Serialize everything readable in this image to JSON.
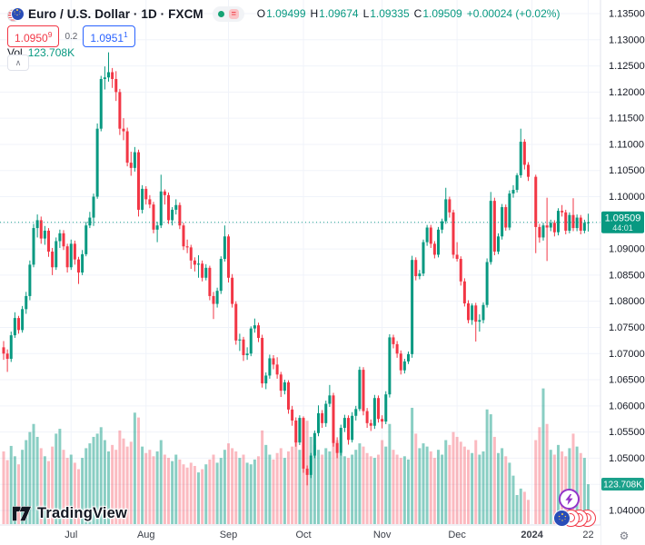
{
  "header": {
    "title_full": "Euro / U.S. Dollar · 1D · FXCM",
    "status_equals_glyph": "=",
    "ohlc": {
      "o_label": "O",
      "o": "1.09499",
      "h_label": "H",
      "h": "1.09674",
      "l_label": "L",
      "l": "1.09335",
      "c_label": "C",
      "c": "1.09509",
      "change": "+0.00024 (+0.02%)"
    },
    "bid": {
      "value": "1.0950",
      "sup": "9"
    },
    "spread": "0.2",
    "ask": {
      "value": "1.0951",
      "sup": "1"
    },
    "vol_label": "Vol",
    "vol_value": "123.708K",
    "collapse_glyph": "∧"
  },
  "price_label": {
    "price": "1.09509",
    "countdown": "44:01"
  },
  "volume_axis_label": "123.708K",
  "footer": {
    "logo_text": "TradingView"
  },
  "gear_glyph": "⚙",
  "colors": {
    "up": "#089981",
    "down": "#f23645",
    "vol_up": "rgba(8,153,129,0.48)",
    "vol_down": "rgba(242,54,69,0.34)",
    "grid": "#f0f3fa",
    "axis_border": "#e0e3eb",
    "axis_text": "#131722",
    "time_text": "#3a3e47",
    "label_bg": "#089981"
  },
  "chart_data": {
    "type": "candlestick",
    "title": "Euro / U.S. Dollar",
    "symbol": "EUR/USD",
    "timeframe": "1D",
    "exchange": "FXCM",
    "legend_position": "top-left",
    "grid": true,
    "y_axis": {
      "min": 1.0375,
      "max": 1.1376,
      "tick_step": 0.005,
      "ticks": [
        1.135,
        1.13,
        1.125,
        1.12,
        1.115,
        1.11,
        1.105,
        1.1,
        1.095,
        1.09,
        1.085,
        1.08,
        1.075,
        1.07,
        1.065,
        1.06,
        1.055,
        1.05,
        1.045,
        1.04
      ],
      "hidden_tick_labels": [
        1.095,
        1.045
      ]
    },
    "x_gridlines": [
      {
        "i": 18,
        "label": "Jul"
      },
      {
        "i": 38,
        "label": "Aug"
      },
      {
        "i": 60,
        "label": "Sep"
      },
      {
        "i": 80,
        "label": "Oct"
      },
      {
        "i": 101,
        "label": "Nov"
      },
      {
        "i": 121,
        "label": "Dec"
      },
      {
        "i": 141,
        "label": "2024"
      },
      {
        "i": 156,
        "label": "22"
      }
    ],
    "last_price": 1.09509,
    "countdown": "44:01",
    "last_volume_k": 123.708,
    "candles": [
      [
        1.0712,
        1.0724,
        1.0688,
        1.07
      ],
      [
        1.07,
        1.0708,
        1.0665,
        1.069
      ],
      [
        1.069,
        1.0742,
        1.0684,
        1.0735
      ],
      [
        1.0735,
        1.0779,
        1.073,
        1.0768
      ],
      [
        1.0768,
        1.0772,
        1.0738,
        1.0745
      ],
      [
        1.0745,
        1.0791,
        1.074,
        1.0785
      ],
      [
        1.0785,
        1.0818,
        1.0776,
        1.081
      ],
      [
        1.081,
        1.0878,
        1.0802,
        1.087
      ],
      [
        1.087,
        1.0948,
        1.0865,
        1.094
      ],
      [
        1.094,
        1.0966,
        1.0922,
        1.0955
      ],
      [
        1.0955,
        1.0962,
        1.091,
        1.092
      ],
      [
        1.092,
        1.0944,
        1.0908,
        1.0935
      ],
      [
        1.0935,
        1.094,
        1.0885,
        1.0895
      ],
      [
        1.0895,
        1.0902,
        1.085,
        1.0865
      ],
      [
        1.0865,
        1.0922,
        1.086,
        1.0915
      ],
      [
        1.0915,
        1.0937,
        1.0902,
        1.093
      ],
      [
        1.093,
        1.0936,
        1.0898,
        1.0905
      ],
      [
        1.0905,
        1.091,
        1.0855,
        1.0865
      ],
      [
        1.0865,
        1.0918,
        1.086,
        1.091
      ],
      [
        1.091,
        1.0916,
        1.087,
        1.088
      ],
      [
        1.088,
        1.0885,
        1.0833,
        1.0855
      ],
      [
        1.0855,
        1.0898,
        1.085,
        1.089
      ],
      [
        1.089,
        1.0952,
        1.0886,
        1.0945
      ],
      [
        1.0945,
        1.0971,
        1.094,
        1.096
      ],
      [
        1.096,
        1.1006,
        1.0944,
        1.1
      ],
      [
        1.1,
        1.114,
        1.0996,
        1.113
      ],
      [
        1.113,
        1.1231,
        1.1125,
        1.1225
      ],
      [
        1.1225,
        1.1249,
        1.1205,
        1.1228
      ],
      [
        1.1228,
        1.1276,
        1.122,
        1.1238
      ],
      [
        1.1238,
        1.1246,
        1.1208,
        1.1225
      ],
      [
        1.1225,
        1.124,
        1.1183,
        1.12
      ],
      [
        1.12,
        1.1206,
        1.1118,
        1.113
      ],
      [
        1.113,
        1.115,
        1.1108,
        1.1125
      ],
      [
        1.1125,
        1.1132,
        1.1058,
        1.1065
      ],
      [
        1.1065,
        1.1086,
        1.104,
        1.1055
      ],
      [
        1.1055,
        1.1095,
        1.1048,
        1.1085
      ],
      [
        1.1085,
        1.109,
        1.0962,
        1.0975
      ],
      [
        1.0975,
        1.1022,
        1.0968,
        1.1015
      ],
      [
        1.1015,
        1.102,
        1.0985,
        1.0995
      ],
      [
        1.0995,
        1.1003,
        1.0978,
        1.0985
      ],
      [
        1.0985,
        1.099,
        1.093,
        1.0937
      ],
      [
        1.0937,
        1.0952,
        1.0913,
        1.0945
      ],
      [
        1.0945,
        1.1042,
        1.094,
        1.101
      ],
      [
        1.101,
        1.1014,
        1.0985,
        1.1003
      ],
      [
        1.1003,
        1.1008,
        1.0948,
        1.0955
      ],
      [
        1.0955,
        1.098,
        1.0945,
        1.0975
      ],
      [
        1.0975,
        1.0995,
        1.0966,
        1.0984
      ],
      [
        1.0984,
        1.0989,
        1.0938,
        1.0945
      ],
      [
        1.0945,
        1.095,
        1.0898,
        1.0905
      ],
      [
        1.0905,
        1.0918,
        1.0892,
        1.0903
      ],
      [
        1.0903,
        1.0908,
        1.0862,
        1.0878
      ],
      [
        1.0878,
        1.0884,
        1.0857,
        1.087
      ],
      [
        1.087,
        1.0888,
        1.0845,
        1.0872
      ],
      [
        1.0872,
        1.0878,
        1.0838,
        1.0845
      ],
      [
        1.0845,
        1.0871,
        1.084,
        1.0864
      ],
      [
        1.0864,
        1.0868,
        1.0802,
        1.081
      ],
      [
        1.081,
        1.0818,
        1.0766,
        1.0795
      ],
      [
        1.0795,
        1.0826,
        1.0788,
        1.082
      ],
      [
        1.082,
        1.0886,
        1.0814,
        1.0881
      ],
      [
        1.0881,
        1.0945,
        1.0876,
        1.0924
      ],
      [
        1.0924,
        1.0928,
        1.0836,
        1.0845
      ],
      [
        1.0845,
        1.0852,
        1.0788,
        1.0795
      ],
      [
        1.0795,
        1.08,
        1.0717,
        1.0725
      ],
      [
        1.0725,
        1.0738,
        1.0705,
        1.0727
      ],
      [
        1.0727,
        1.0732,
        1.0686,
        1.0697
      ],
      [
        1.0697,
        1.0712,
        1.0688,
        1.07
      ],
      [
        1.07,
        1.0752,
        1.0695,
        1.0748
      ],
      [
        1.0748,
        1.0767,
        1.074,
        1.0754
      ],
      [
        1.0754,
        1.0759,
        1.0722,
        1.073
      ],
      [
        1.073,
        1.0736,
        1.0635,
        1.0643
      ],
      [
        1.0643,
        1.0664,
        1.0632,
        1.0658
      ],
      [
        1.0658,
        1.0698,
        1.0652,
        1.0691
      ],
      [
        1.0691,
        1.0697,
        1.067,
        1.0679
      ],
      [
        1.0679,
        1.0693,
        1.0652,
        1.066
      ],
      [
        1.066,
        1.0665,
        1.0617,
        1.0629
      ],
      [
        1.0629,
        1.065,
        1.0622,
        1.0645
      ],
      [
        1.0645,
        1.0649,
        1.0585,
        1.0593
      ],
      [
        1.0593,
        1.06,
        1.0562,
        1.0572
      ],
      [
        1.0572,
        1.0578,
        1.0522,
        1.053
      ],
      [
        1.053,
        1.0582,
        1.0525,
        1.0577
      ],
      [
        1.0577,
        1.058,
        1.0472,
        1.048
      ],
      [
        1.048,
        1.0486,
        1.0448,
        1.0468
      ],
      [
        1.0468,
        1.051,
        1.0462,
        1.0505
      ],
      [
        1.0505,
        1.0553,
        1.05,
        1.0548
      ],
      [
        1.0548,
        1.0601,
        1.0542,
        1.0586
      ],
      [
        1.0586,
        1.0592,
        1.0558,
        1.0567
      ],
      [
        1.0567,
        1.061,
        1.056,
        1.0604
      ],
      [
        1.0604,
        1.064,
        1.0598,
        1.062
      ],
      [
        1.062,
        1.0625,
        1.0522,
        1.0529
      ],
      [
        1.0529,
        1.054,
        1.05,
        1.051
      ],
      [
        1.051,
        1.0564,
        1.0505,
        1.0558
      ],
      [
        1.0558,
        1.0583,
        1.055,
        1.0577
      ],
      [
        1.0577,
        1.0582,
        1.0526,
        1.0535
      ],
      [
        1.0535,
        1.0588,
        1.053,
        1.0581
      ],
      [
        1.0581,
        1.06,
        1.0572,
        1.0594
      ],
      [
        1.0594,
        1.0675,
        1.059,
        1.0669
      ],
      [
        1.0669,
        1.0674,
        1.0582,
        1.059
      ],
      [
        1.059,
        1.0596,
        1.0558,
        1.0567
      ],
      [
        1.0567,
        1.0574,
        1.0552,
        1.0562
      ],
      [
        1.0562,
        1.0621,
        1.0556,
        1.0615
      ],
      [
        1.0615,
        1.062,
        1.0568,
        1.0575
      ],
      [
        1.0575,
        1.0582,
        1.0557,
        1.057
      ],
      [
        1.057,
        1.0628,
        1.0565,
        1.0622
      ],
      [
        1.0622,
        1.0737,
        1.0616,
        1.0731
      ],
      [
        1.0731,
        1.0736,
        1.071,
        1.0718
      ],
      [
        1.0718,
        1.0724,
        1.0692,
        1.07
      ],
      [
        1.07,
        1.0706,
        1.066,
        1.0668
      ],
      [
        1.0668,
        1.069,
        1.0662,
        1.0685
      ],
      [
        1.0685,
        1.0704,
        1.068,
        1.0699
      ],
      [
        1.0699,
        1.0887,
        1.0692,
        1.0879
      ],
      [
        1.0879,
        1.0884,
        1.084,
        1.0848
      ],
      [
        1.0848,
        1.086,
        1.0842,
        1.0853
      ],
      [
        1.0853,
        1.0918,
        1.0848,
        1.0913
      ],
      [
        1.0913,
        1.0946,
        1.0906,
        1.0941
      ],
      [
        1.0941,
        1.0946,
        1.0902,
        1.091
      ],
      [
        1.091,
        1.0915,
        1.0882,
        1.0889
      ],
      [
        1.0889,
        1.0942,
        1.0884,
        1.0937
      ],
      [
        1.0937,
        1.0958,
        1.093,
        1.0953
      ],
      [
        1.0953,
        1.1017,
        1.0948,
        1.0995
      ],
      [
        1.0995,
        1.1,
        1.096,
        1.097
      ],
      [
        1.097,
        1.0975,
        1.0882,
        1.0889
      ],
      [
        1.0889,
        1.0913,
        1.0876,
        1.0881
      ],
      [
        1.0881,
        1.0886,
        1.083,
        1.0838
      ],
      [
        1.0838,
        1.0844,
        1.079,
        1.0796
      ],
      [
        1.0796,
        1.0802,
        1.0758,
        1.0764
      ],
      [
        1.0764,
        1.0796,
        1.0755,
        1.0792
      ],
      [
        1.0792,
        1.0797,
        1.0723,
        1.0761
      ],
      [
        1.0761,
        1.0775,
        1.0742,
        1.0764
      ],
      [
        1.0764,
        1.0798,
        1.0758,
        1.0793
      ],
      [
        1.0793,
        1.0882,
        1.0788,
        1.0875
      ],
      [
        1.0875,
        1.1009,
        1.087,
        1.0992
      ],
      [
        1.0992,
        1.0998,
        1.0888,
        1.0895
      ],
      [
        1.0895,
        1.093,
        1.089,
        1.0924
      ],
      [
        1.0924,
        1.0986,
        1.0918,
        1.098
      ],
      [
        1.098,
        1.0985,
        1.0935,
        1.0941
      ],
      [
        1.0941,
        1.1012,
        1.0936,
        1.1006
      ],
      [
        1.1006,
        1.1022,
        1.0998,
        1.1013
      ],
      [
        1.1013,
        1.1045,
        1.1008,
        1.1041
      ],
      [
        1.1041,
        1.113,
        1.1036,
        1.1105
      ],
      [
        1.1105,
        1.111,
        1.1052,
        1.1061
      ],
      [
        1.1061,
        1.1066,
        1.103,
        1.1038
      ],
      null,
      [
        1.1038,
        1.1042,
        1.0892,
        1.0942
      ],
      [
        1.0942,
        1.0948,
        1.0912,
        1.0922
      ],
      [
        1.0922,
        1.095,
        1.0916,
        1.0945
      ],
      [
        1.0945,
        1.0998,
        1.0877,
        1.0941
      ],
      [
        1.0941,
        1.0956,
        1.0934,
        1.095
      ],
      [
        1.095,
        1.0955,
        1.0924,
        1.0932
      ],
      [
        1.0932,
        1.0978,
        1.0926,
        1.0973
      ],
      [
        1.0973,
        1.0984,
        1.0962,
        1.097
      ],
      [
        1.097,
        1.0975,
        1.0928,
        1.0935
      ],
      [
        1.0935,
        1.097,
        1.093,
        1.0965
      ],
      [
        1.0965,
        1.0997,
        1.0934,
        1.094
      ],
      [
        1.094,
        1.0966,
        1.0934,
        1.096
      ],
      [
        1.096,
        1.0965,
        1.0928,
        1.0935
      ],
      [
        1.0935,
        1.0956,
        1.093,
        1.095
      ],
      [
        1.09499,
        1.09674,
        1.09335,
        1.09509
      ]
    ],
    "volumes_k": [
      225,
      198,
      242,
      210,
      185,
      230,
      260,
      285,
      310,
      270,
      235,
      210,
      195,
      240,
      280,
      295,
      230,
      205,
      215,
      190,
      170,
      205,
      235,
      250,
      270,
      280,
      300,
      260,
      225,
      245,
      230,
      290,
      265,
      240,
      255,
      345,
      330,
      240,
      220,
      230,
      210,
      225,
      260,
      215,
      205,
      195,
      215,
      200,
      185,
      175,
      190,
      180,
      160,
      170,
      185,
      200,
      215,
      190,
      205,
      230,
      250,
      235,
      225,
      205,
      215,
      190,
      185,
      200,
      210,
      290,
      245,
      215,
      200,
      220,
      235,
      205,
      225,
      240,
      260,
      230,
      305,
      320,
      270,
      245,
      230,
      215,
      235,
      225,
      300,
      260,
      220,
      210,
      205,
      215,
      230,
      250,
      240,
      220,
      210,
      205,
      215,
      260,
      240,
      310,
      230,
      215,
      205,
      210,
      200,
      360,
      280,
      235,
      250,
      240,
      225,
      205,
      230,
      215,
      260,
      245,
      285,
      270,
      255,
      240,
      230,
      220,
      260,
      215,
      225,
      355,
      340,
      270,
      220,
      235,
      210,
      190,
      150,
      90,
      110,
      100,
      75,
      null,
      260,
      300,
      420,
      310,
      230,
      215,
      245,
      225,
      210,
      235,
      280,
      240,
      220,
      205,
      123.708
    ]
  }
}
